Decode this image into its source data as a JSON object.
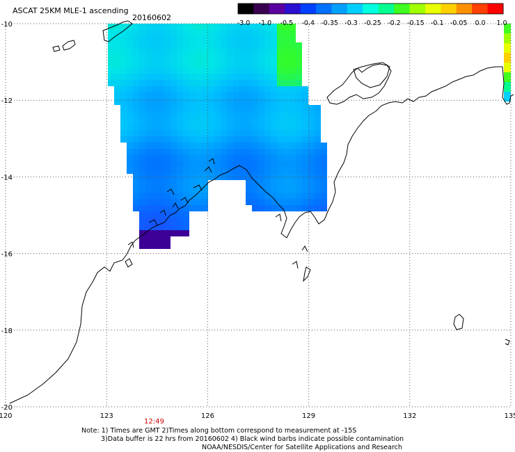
{
  "header": {
    "product": "ASCAT 25KM MLE-1 ascending",
    "date": "20160602"
  },
  "colorbar": {
    "tick_labels": [
      "-3.0",
      "-1.0",
      "-0.5",
      "-0.4",
      "-0.35",
      "-0.3",
      "-0.25",
      "-0.2",
      "-0.15",
      "-0.1",
      "-0.05",
      "0.0",
      "1.0"
    ],
    "colors": [
      "#000000",
      "#3a0050",
      "#5a00a0",
      "#2a10d0",
      "#0040ff",
      "#0070ff",
      "#00a0ff",
      "#00d0ff",
      "#00ffe0",
      "#00ff90",
      "#40ff20",
      "#a0ff00",
      "#e8ff00",
      "#ffd000",
      "#ff9000",
      "#ff4000",
      "#ff0000"
    ]
  },
  "axes": {
    "lon_labels": [
      "120",
      "123",
      "126",
      "129",
      "132",
      "135"
    ],
    "lat_labels": [
      "-10",
      "-12",
      "-14",
      "-16",
      "-18",
      "-20"
    ],
    "lon_range": [
      120,
      135
    ],
    "lat_range": [
      -20,
      -10
    ]
  },
  "pass_time": "12:49",
  "notes": {
    "line1": "Note: 1) Times are GMT 2)Times along bottom correspond to measurement at -15S",
    "line2": "3)Data buffer is 22 hrs from 20160602 4) Black wind barbs indicate possible contamination",
    "line3": "NOAA/NESDIS/Center for Satellite Applications and Research"
  },
  "colors": {
    "grid": "#555555",
    "coast": "#000000",
    "time": "#cc0000"
  }
}
